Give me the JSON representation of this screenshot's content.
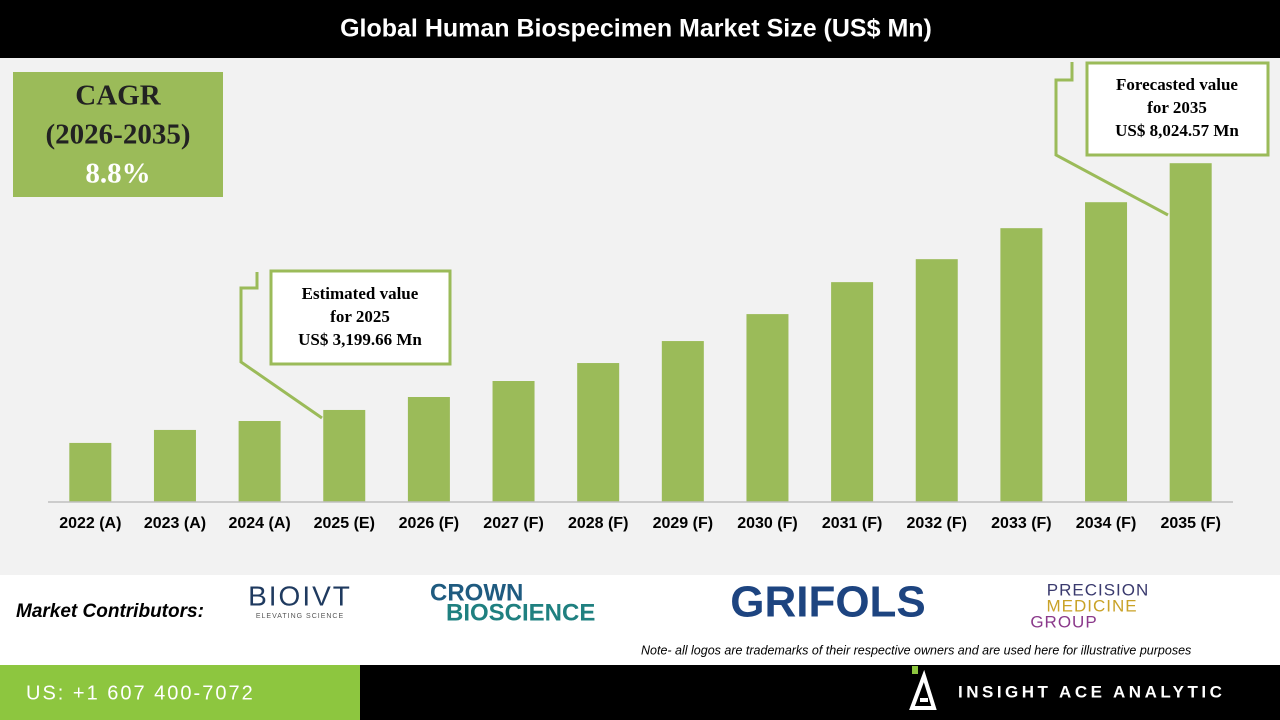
{
  "chart_data": {
    "type": "bar",
    "title": "Global Human Biospecimen Market Size (US$ Mn)",
    "categories": [
      "2022 (A)",
      "2023 (A)",
      "2024 (A)",
      "2025 (E)",
      "2026 (F)",
      "2027 (F)",
      "2028 (F)",
      "2029 (F)",
      "2030 (F)",
      "2031 (F)",
      "2032 (F)",
      "2033 (F)",
      "2034 (F)",
      "2035 (F)"
    ],
    "values": [
      2555,
      2809,
      2984,
      3199.66,
      3453,
      3766,
      4117,
      4547,
      5074,
      5699,
      6148,
      6754,
      7262,
      8024.57
    ],
    "color": "#9bbb59",
    "ylim": [
      1400,
      8400
    ],
    "annotations": [
      {
        "lines": [
          "Estimated value",
          "for 2025",
          "US$ 3,199.66 Mn"
        ]
      },
      {
        "lines": [
          "Forecasted value",
          "for 2035",
          "US$ 8,024.57 Mn"
        ]
      }
    ]
  },
  "cagr": {
    "lines": [
      "CAGR",
      "(2026-2035)",
      "8.8%"
    ]
  },
  "contributors": {
    "title": "Market Contributors:",
    "logos": [
      [
        "BIOIVT",
        "ELEVATING SCIENCE"
      ],
      [
        "CROWN",
        "BIOSCIENCE"
      ],
      [
        "GRIFOLS"
      ],
      [
        "PRECISION",
        "MEDICINE",
        "GROUP"
      ]
    ],
    "note": "Note- all logos are trademarks of their respective owners and are used here for illustrative purposes"
  },
  "footer": {
    "phone": "US: +1 607 400-7072",
    "brand": "INSIGHT ACE ANALYTIC"
  }
}
